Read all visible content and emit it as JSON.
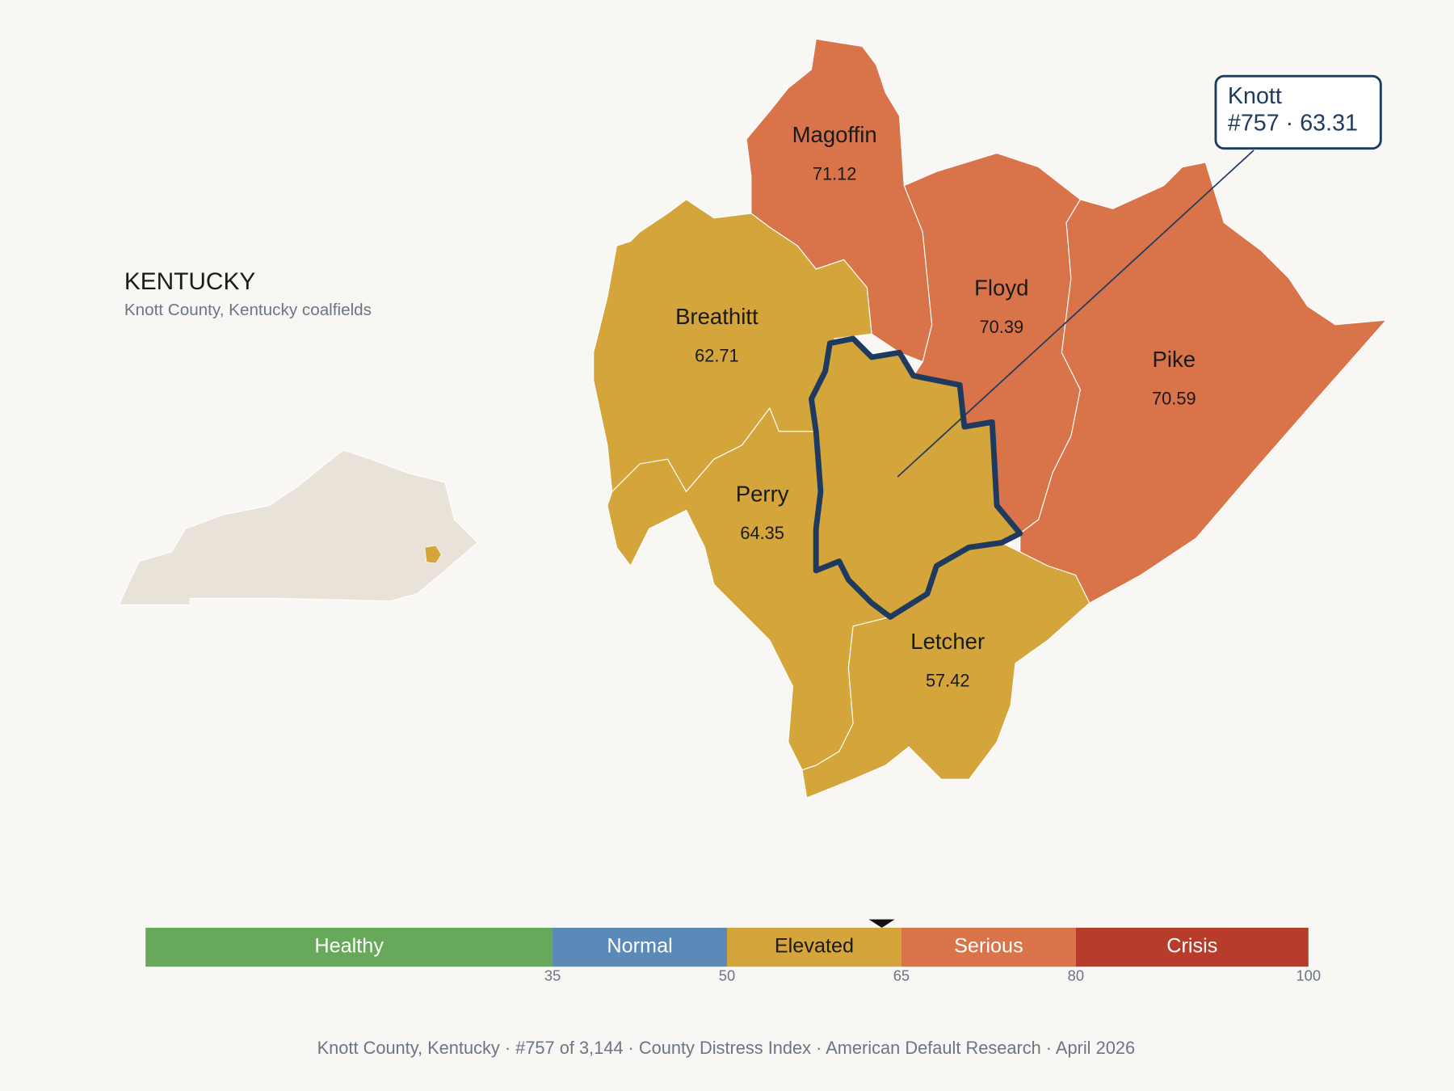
{
  "header": {
    "title": "KENTUCKY",
    "subtitle": "Knott County, Kentucky coalfields"
  },
  "counties": [
    {
      "name": "Magoffin",
      "score": 71.12
    },
    {
      "name": "Floyd",
      "score": 70.39
    },
    {
      "name": "Pike",
      "score": 70.59
    },
    {
      "name": "Breathitt",
      "score": 62.71
    },
    {
      "name": "Perry",
      "score": 64.35
    },
    {
      "name": "Letcher",
      "score": 57.42
    }
  ],
  "focus": {
    "name": "Knott",
    "detail": "#757 · 63.31",
    "score": 63.31
  },
  "scale": {
    "range": [
      0,
      100
    ],
    "ticks": [
      35,
      50,
      65,
      80,
      100
    ],
    "bands": [
      {
        "label": "Healthy",
        "color": "#68a85a"
      },
      {
        "label": "Normal",
        "color": "#5b8ab8"
      },
      {
        "label": "Elevated",
        "color": "#d4a53a"
      },
      {
        "label": "Serious",
        "color": "#d9744a"
      },
      {
        "label": "Crisis",
        "color": "#b83c2c"
      }
    ]
  },
  "footer": "Knott County, Kentucky  ·  #757 of 3,144  ·  County Distress Index  ·  American Default Research  ·  April 2026"
}
